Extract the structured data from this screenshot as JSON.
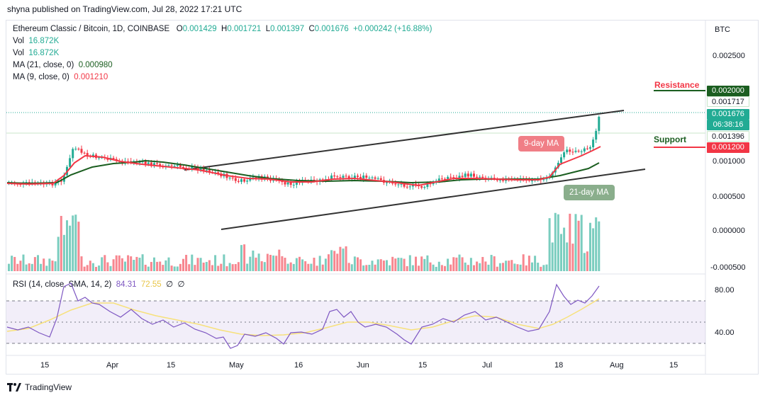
{
  "header": {
    "publisher_line": "shyna published on TradingView.com, Jul 28, 2022 17:21 UTC"
  },
  "legend": {
    "symbol": "Ethereum Classic / Bitcoin, 1D, COINBASE",
    "o_label": "O",
    "o_value": "0.001429",
    "h_label": "H",
    "h_value": "0.001721",
    "l_label": "L",
    "l_value": "0.001397",
    "c_label": "C",
    "c_value": "0.001676",
    "change": "+0.000242 (+16.88%)",
    "vol1_label": "Vol",
    "vol1_value": "16.872K",
    "vol2_label": "Vol",
    "vol2_value": "16.872K",
    "ma21_label": "MA (21, close, 0)",
    "ma21_value": "0.000980",
    "ma9_label": "MA (9, close, 0)",
    "ma9_value": "0.001210"
  },
  "rsi_legend": {
    "label": "RSI (14, close, SMA, 14, 2)",
    "value1": "84.31",
    "value2": "72.55",
    "value3": "∅",
    "value4": "∅"
  },
  "price_axis": {
    "currency": "BTC",
    "ticks": [
      "0.002500",
      "0.001000",
      "0.000500",
      "0.000000",
      "-0.000500"
    ]
  },
  "price_tags": {
    "resistance_price": "0.002000",
    "high_price": "0.001717",
    "current_price": "0.001676",
    "countdown": "06:38:16",
    "low_price": "0.001396",
    "support_price": "0.001200"
  },
  "rsi_axis": {
    "ticks": [
      "80.00",
      "40.00"
    ]
  },
  "time_axis": {
    "ticks": [
      "15",
      "Apr",
      "15",
      "May",
      "16",
      "Jun",
      "15",
      "Jul",
      "18",
      "Aug",
      "15"
    ]
  },
  "annotations": {
    "resistance": "Resistance",
    "support": "Support",
    "ma9_bubble": "9-day MA",
    "ma21_bubble": "21-day MA"
  },
  "colors": {
    "up": "#22ab94",
    "down": "#f23645",
    "ma9": "#f23645",
    "ma21": "#1b5e20",
    "rsi": "#7e57c2",
    "rsi_ma": "#f7e17b",
    "resistance": "#1b5e20",
    "support": "#f23645",
    "bubble_red": "#f07e86",
    "bubble_green": "#8aae8c"
  },
  "footer": {
    "brand": "TradingView"
  }
}
